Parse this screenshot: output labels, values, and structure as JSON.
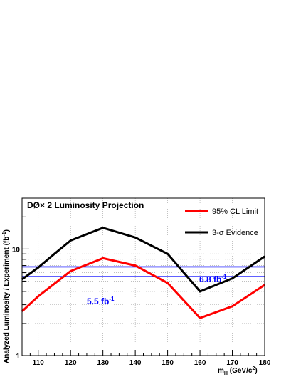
{
  "chart_data": {
    "type": "line",
    "title": "DØ× 2 Luminosity Projection",
    "xlabel": "m_H (GeV/c^2)",
    "ylabel": "Analyzed Luminosity / Experiment (fb^-1)",
    "x": [
      105,
      110,
      115,
      120,
      125,
      130,
      135,
      140,
      145,
      150,
      155,
      160,
      165,
      170,
      175,
      180
    ],
    "series": [
      {
        "name": "95% CL Limit",
        "color": "#ff0000",
        "points": [
          [
            105,
            2.6
          ],
          [
            110,
            3.6
          ],
          [
            120,
            6.2
          ],
          [
            130,
            8.2
          ],
          [
            140,
            7.0
          ],
          [
            150,
            4.8
          ],
          [
            160,
            2.25
          ],
          [
            170,
            2.9
          ],
          [
            180,
            4.6
          ]
        ]
      },
      {
        "name": "3-σ Evidence",
        "color": "#000000",
        "points": [
          [
            105,
            5.2
          ],
          [
            110,
            6.7
          ],
          [
            115,
            9.0
          ],
          [
            120,
            12.0
          ],
          [
            130,
            15.8
          ],
          [
            140,
            12.8
          ],
          [
            150,
            9.0
          ],
          [
            160,
            4.0
          ],
          [
            170,
            5.3
          ],
          [
            180,
            8.5
          ]
        ]
      }
    ],
    "reference_lines": [
      {
        "value": 6.8,
        "label": "6.8 fb",
        "label_sup": "-1",
        "color": "#0000ff"
      },
      {
        "value": 5.5,
        "label": "5.5 fb",
        "label_sup": "-1",
        "color": "#0000ff"
      }
    ],
    "xlim": [
      105,
      180
    ],
    "ylim": [
      1,
      30
    ],
    "yscale": "log",
    "xticks": [
      110,
      120,
      130,
      140,
      150,
      160,
      170,
      180
    ],
    "yticks_labeled": [
      1,
      10
    ],
    "grid": true,
    "legend": "top-right"
  },
  "labels": {
    "title": "DØ× 2 Luminosity Projection",
    "ylabel_main": "Analyzed Luminosity / Experiment (fb",
    "ylabel_sup": "-1",
    "ylabel_end": ")",
    "xlabel_m": "m",
    "xlabel_sub": "H",
    "xlabel_unit": " (GeV/c",
    "xlabel_sup": "2",
    "xlabel_end": ")"
  }
}
